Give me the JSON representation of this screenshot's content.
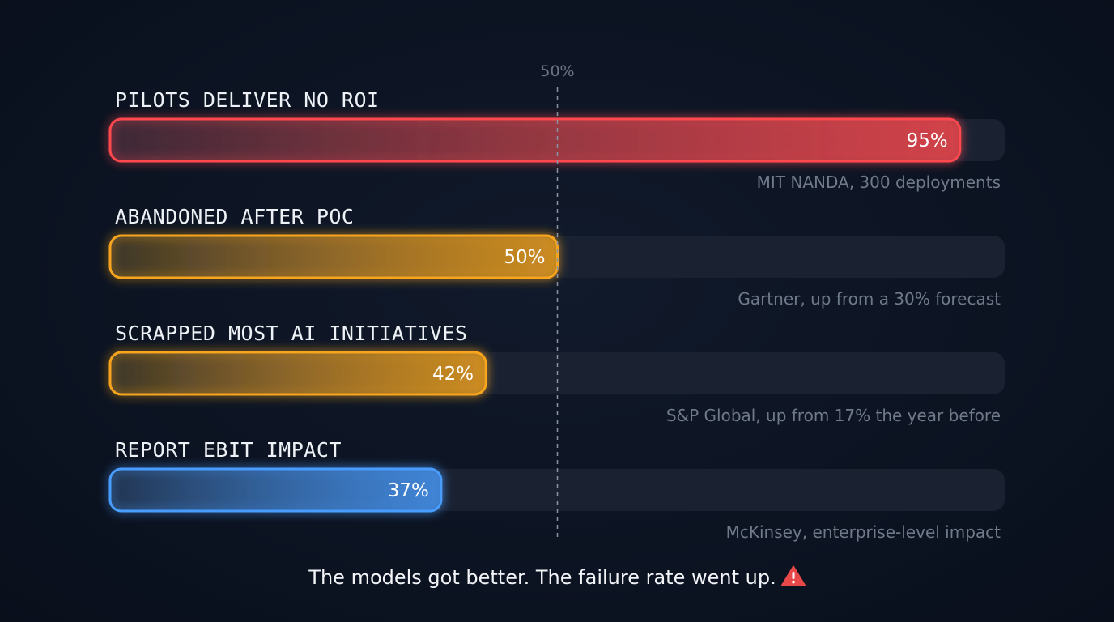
{
  "chart_data": {
    "type": "bar",
    "orientation": "horizontal",
    "xlim": [
      0,
      100
    ],
    "reference_line": {
      "value": 50,
      "label": "50%"
    },
    "rows": [
      {
        "label": "PILOTS DELIVER NO ROI",
        "value": 95,
        "value_label": "95%",
        "source": "MIT NANDA, 300 deployments",
        "color": "#ff4a4f"
      },
      {
        "label": "ABANDONED AFTER POC",
        "value": 50,
        "value_label": "50%",
        "source": "Gartner, up from a 30% forecast",
        "color": "#f7a51c"
      },
      {
        "label": "SCRAPPED MOST AI INITIATIVES",
        "value": 42,
        "value_label": "42%",
        "source": "S&P Global, up from 17% the year before",
        "color": "#f7a51c"
      },
      {
        "label": "REPORT EBIT IMPACT",
        "value": 37,
        "value_label": "37%",
        "source": "McKinsey, enterprise-level impact",
        "color": "#4a9dff"
      }
    ],
    "grid": false,
    "legend": "none"
  },
  "footer": {
    "text": "The models got better. The failure rate went up.",
    "icon": "warning-icon",
    "icon_color": "#e84848"
  },
  "colors": {
    "background": "#0c1322",
    "track": "#1a2232"
  }
}
